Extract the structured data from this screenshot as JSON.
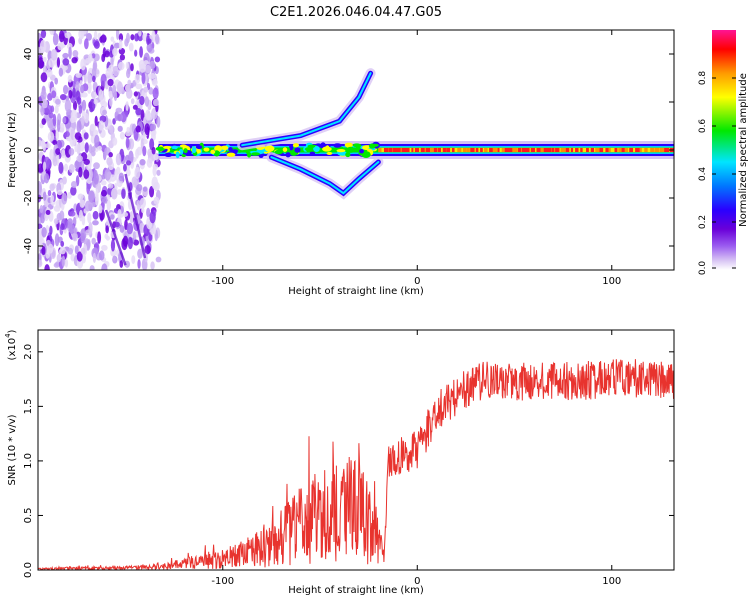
{
  "chart_data": [
    {
      "type": "heatmap",
      "title": "C2E1.2026.046.04.47.G05",
      "xlabel": "Height of straight line (km)",
      "ylabel": "Frequency (Hz)",
      "xlim": [
        -195,
        132
      ],
      "ylim": [
        -50,
        50
      ],
      "xticks": [
        -100,
        0,
        100
      ],
      "yticks": [
        -40,
        -20,
        0,
        20,
        40
      ],
      "colorbar": {
        "label": "Normalized spectral amplitude",
        "range": [
          0,
          1
        ],
        "ticks": [
          "0.0",
          "0.2",
          "0.4",
          "0.6",
          "0.8"
        ],
        "colors": [
          "#ffffff",
          "#d8c4f4",
          "#9b5cf0",
          "#6a00d9",
          "#2a00ff",
          "#0077ff",
          "#00e5ff",
          "#00e800",
          "#ffff00",
          "#ff9a00",
          "#ff0000",
          "#ff1493"
        ]
      },
      "features": [
        {
          "name": "noise region",
          "x_range": [
            -195,
            -133
          ],
          "f_range": [
            -50,
            50
          ]
        },
        {
          "name": "main band",
          "x_range": [
            -133,
            132
          ],
          "f_center": 0,
          "amplitude": "high for x > -20"
        },
        {
          "name": "upper branch",
          "points": [
            [
              -90,
              2
            ],
            [
              -60,
              6
            ],
            [
              -40,
              12
            ],
            [
              -30,
              22
            ],
            [
              -24,
              32
            ]
          ]
        },
        {
          "name": "lower branch",
          "points": [
            [
              -75,
              -3
            ],
            [
              -60,
              -8
            ],
            [
              -45,
              -14
            ],
            [
              -38,
              -18
            ],
            [
              -30,
              -12
            ],
            [
              -20,
              -5
            ]
          ]
        }
      ]
    },
    {
      "type": "line",
      "xlabel": "Height of straight line (km)",
      "ylabel": "SNR (10 * v/v)",
      "y_scale_label": "(x10",
      "y_scale_exponent": "4",
      "xlim": [
        -195,
        132
      ],
      "ylim": [
        0,
        2.2
      ],
      "xticks": [
        -100,
        0,
        100
      ],
      "yticks": [
        "0.0",
        "0.5",
        "1.0",
        "1.5",
        "2.0"
      ],
      "series": [
        {
          "name": "SNR",
          "color": "#e8332e",
          "x": [
            -195,
            -150,
            -130,
            -120,
            -100,
            -90,
            -80,
            -70,
            -60,
            -50,
            -40,
            -30,
            -25,
            -20,
            -17,
            -15,
            -10,
            0,
            10,
            20,
            30,
            40,
            50,
            60,
            70,
            80,
            90,
            100,
            110,
            120,
            132
          ],
          "y": [
            0.01,
            0.02,
            0.03,
            0.06,
            0.1,
            0.14,
            0.2,
            0.3,
            0.4,
            0.5,
            0.55,
            0.55,
            0.5,
            0.35,
            0.12,
            0.95,
            1.05,
            1.1,
            1.45,
            1.6,
            1.72,
            1.75,
            1.72,
            1.74,
            1.75,
            1.73,
            1.74,
            1.75,
            1.76,
            1.74,
            1.73
          ]
        }
      ]
    }
  ]
}
